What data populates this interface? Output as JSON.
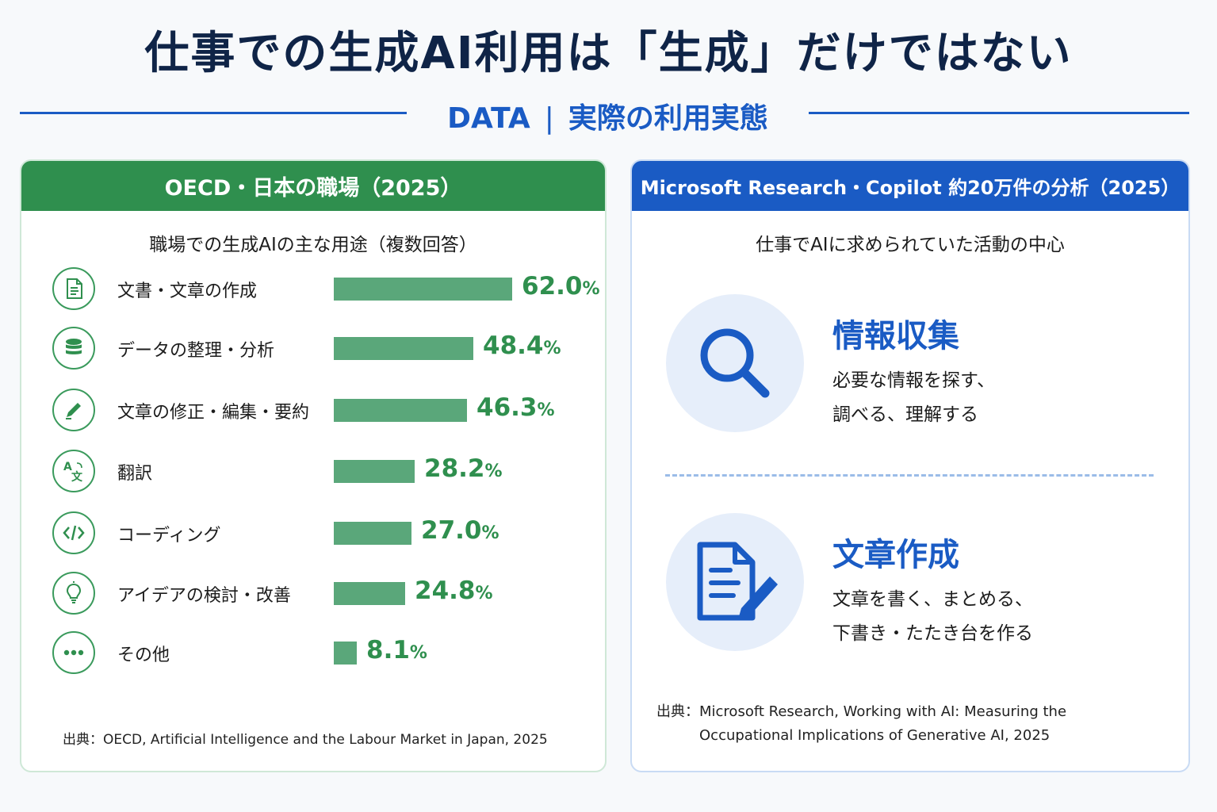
{
  "page": {
    "title": "仕事での生成AI利用は「生成」だけではない",
    "subtitle_left": "DATA",
    "subtitle_sep": "|",
    "subtitle_right": "実際の利用実態"
  },
  "left_panel": {
    "header": "OECD・日本の職場（2025）",
    "chart_title": "職場での生成AIの主な用途（複数回答）",
    "source": "出典：OECD, Artificial Intelligence and the Labour Market in Japan, 2025"
  },
  "chart_data": {
    "type": "bar",
    "orientation": "horizontal",
    "title": "職場での生成AIの主な用途（複数回答）",
    "categories": [
      "文書・文章の作成",
      "データの整理・分析",
      "文章の修正・編集・要約",
      "翻訳",
      "コーディング",
      "アイデアの検討・改善",
      "その他"
    ],
    "values": [
      62.0,
      48.4,
      46.3,
      28.2,
      27.0,
      24.8,
      8.1
    ],
    "value_labels": [
      "62.0",
      "48.4",
      "46.3",
      "28.2",
      "27.0",
      "24.8",
      "8.1"
    ],
    "unit": "%",
    "icons": [
      "document-icon",
      "database-icon",
      "pencil-icon",
      "translate-icon",
      "code-icon",
      "lightbulb-icon",
      "more-icon"
    ],
    "bar_color": "#5aa77a",
    "value_color": "#2f8f4e",
    "grid": false,
    "legend": "none"
  },
  "right_panel": {
    "header": "Microsoft Research・Copilot 約20万件の分析（2025）",
    "subtitle": "仕事でAIに求められていた活動の中心",
    "activities": [
      {
        "icon": "magnifier-icon",
        "title": "情報収集",
        "desc1": "必要な情報を探す、",
        "desc2": "調べる、理解する"
      },
      {
        "icon": "document-edit-icon",
        "title": "文章作成",
        "desc1": "文章を書く、まとめる、",
        "desc2": "下書き・たたき台を作る"
      }
    ],
    "source1": "出典：Microsoft Research, Working with AI: Measuring the",
    "source2": "Occupational Implications of Generative AI, 2025"
  },
  "colors": {
    "title": "#0f2447",
    "accent_blue": "#1a5bc4",
    "accent_green": "#2f8f4e"
  }
}
